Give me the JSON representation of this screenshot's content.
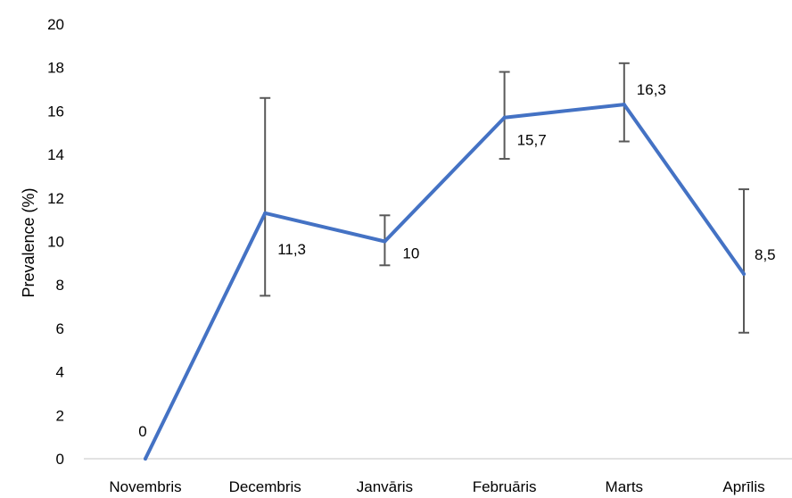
{
  "chart_data": {
    "type": "line",
    "title": "",
    "xlabel": "",
    "ylabel": "Prevalence (%)",
    "ylim": [
      0,
      20
    ],
    "yticks": [
      0,
      2,
      4,
      6,
      8,
      10,
      12,
      14,
      16,
      18,
      20
    ],
    "ytick_labels": [
      "0",
      "2",
      "4",
      "6",
      "8",
      "10",
      "12",
      "14",
      "16",
      "18",
      "20"
    ],
    "grid": false,
    "legend": "none",
    "categories": [
      "Novembris",
      "Decembris",
      "Janvāris",
      "Februāris",
      "Marts",
      "Aprīlis"
    ],
    "series": [
      {
        "values": [
          0,
          11.3,
          10,
          15.7,
          16.3,
          8.5
        ],
        "value_labels": [
          "0",
          "11,3",
          "10",
          "15,7",
          "16,3",
          "8,5"
        ],
        "error_low": [
          0,
          7.5,
          8.9,
          13.8,
          14.6,
          5.8
        ],
        "error_high": [
          0,
          16.6,
          11.2,
          17.8,
          18.2,
          12.4
        ],
        "color": "#4472C4"
      }
    ],
    "axis_color": "#D9D9D9",
    "error_bar_color": "#595959"
  }
}
